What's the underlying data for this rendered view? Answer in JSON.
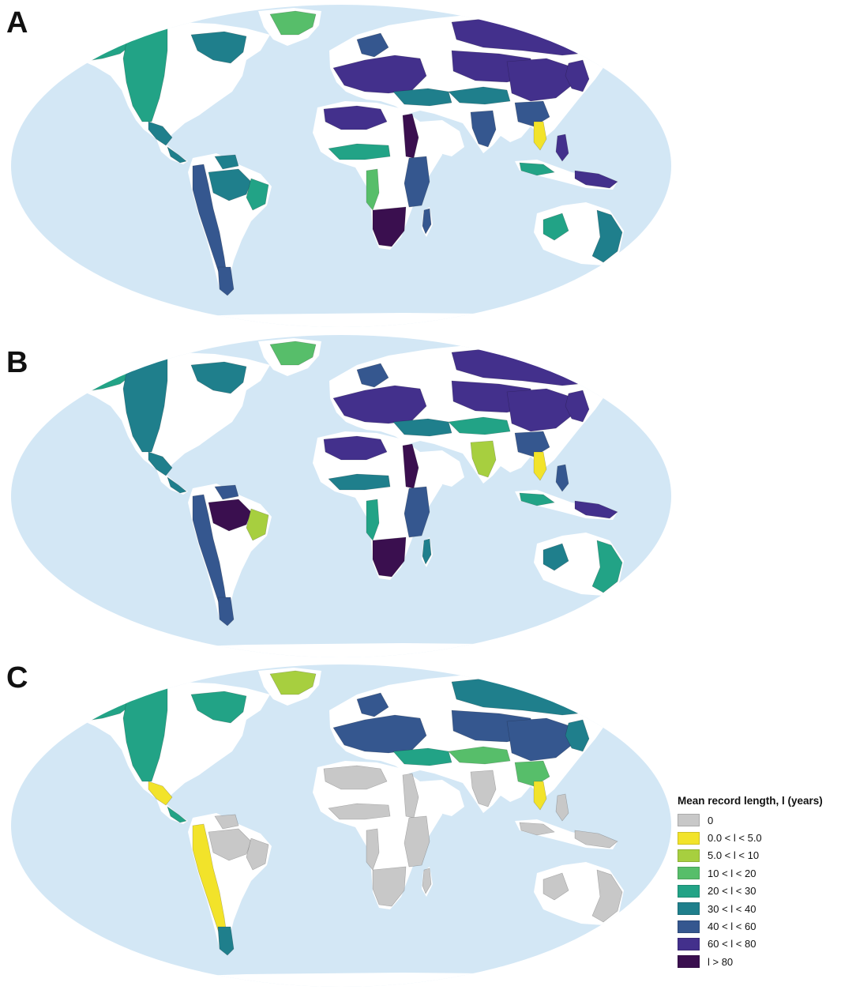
{
  "panels": [
    {
      "label": "A"
    },
    {
      "label": "B"
    },
    {
      "label": "C"
    }
  ],
  "colors": {
    "ocean": "#d3e7f5",
    "land": "#ffffff",
    "nodata": "#c8c8c8",
    "c1": "#f2e32a",
    "c2": "#a7cf3f",
    "c3": "#57be6a",
    "c4": "#22a386",
    "c5": "#1f7f8c",
    "c6": "#35578f",
    "c7": "#43308c",
    "c8": "#3a0f4f"
  },
  "legend": {
    "title": "Mean record length, l (years)",
    "items": [
      {
        "label": "0",
        "color": "#c8c8c8"
      },
      {
        "label": "0.0 < l < 5.0",
        "color": "#f2e32a"
      },
      {
        "label": "5.0 < l < 10",
        "color": "#a7cf3f"
      },
      {
        "label": "10 < l < 20",
        "color": "#57be6a"
      },
      {
        "label": "20 < l < 30",
        "color": "#22a386"
      },
      {
        "label": "30 < l < 40",
        "color": "#1f7f8c"
      },
      {
        "label": "40 < l < 60",
        "color": "#35578f"
      },
      {
        "label": "60 < l < 80",
        "color": "#43308c"
      },
      {
        "label": "l > 80",
        "color": "#3a0f4f"
      }
    ]
  },
  "regions": [
    {
      "name": "alaska-yukon",
      "a": "c4",
      "b": "c4",
      "c": "c4"
    },
    {
      "name": "western-north-america",
      "a": "c4",
      "b": "c5",
      "c": "c4"
    },
    {
      "name": "eastern-canada",
      "a": "c5",
      "b": "c5",
      "c": "c4"
    },
    {
      "name": "greenland",
      "a": "c3",
      "b": "c3",
      "c": "c2"
    },
    {
      "name": "mexico",
      "a": "c5",
      "b": "c5",
      "c": "c1"
    },
    {
      "name": "central-america",
      "a": "c5",
      "b": "c5",
      "c": "c4"
    },
    {
      "name": "andes",
      "a": "c6",
      "b": "c6",
      "c": "c1"
    },
    {
      "name": "patagonia",
      "a": "c6",
      "b": "c6",
      "c": "c5"
    },
    {
      "name": "amazon",
      "a": "c5",
      "b": "c8",
      "c": "nodata"
    },
    {
      "name": "eastern-brazil",
      "a": "c4",
      "b": "c2",
      "c": "nodata"
    },
    {
      "name": "guiana",
      "a": "c5",
      "b": "c6",
      "c": "nodata"
    },
    {
      "name": "europe",
      "a": "c7",
      "b": "c7",
      "c": "c6"
    },
    {
      "name": "scandinavia",
      "a": "c6",
      "b": "c6",
      "c": "c6"
    },
    {
      "name": "turkey-caucasus",
      "a": "c5",
      "b": "c5",
      "c": "c4"
    },
    {
      "name": "north-africa",
      "a": "c7",
      "b": "c7",
      "c": "nodata"
    },
    {
      "name": "sahel",
      "a": "c4",
      "b": "c5",
      "c": "nodata"
    },
    {
      "name": "nile",
      "a": "c8",
      "b": "c8",
      "c": "nodata"
    },
    {
      "name": "east-africa",
      "a": "c6",
      "b": "c6",
      "c": "nodata"
    },
    {
      "name": "southern-africa",
      "a": "c8",
      "b": "c8",
      "c": "nodata"
    },
    {
      "name": "west-africa-coast",
      "a": "c3",
      "b": "c4",
      "c": "nodata"
    },
    {
      "name": "madagascar",
      "a": "c6",
      "b": "c5",
      "c": "nodata"
    },
    {
      "name": "siberia",
      "a": "c7",
      "b": "c7",
      "c": "c5"
    },
    {
      "name": "central-asia",
      "a": "c7",
      "b": "c7",
      "c": "c6"
    },
    {
      "name": "himalaya",
      "a": "c5",
      "b": "c4",
      "c": "c3"
    },
    {
      "name": "china",
      "a": "c7",
      "b": "c7",
      "c": "c6"
    },
    {
      "name": "south-china",
      "a": "c6",
      "b": "c6",
      "c": "c3"
    },
    {
      "name": "japan-korea",
      "a": "c7",
      "b": "c7",
      "c": "c5"
    },
    {
      "name": "india",
      "a": "c6",
      "b": "c2",
      "c": "nodata"
    },
    {
      "name": "indochina",
      "a": "c1",
      "b": "c1",
      "c": "c1"
    },
    {
      "name": "philippines",
      "a": "c7",
      "b": "c6",
      "c": "nodata"
    },
    {
      "name": "indonesia",
      "a": "c4",
      "b": "c4",
      "c": "nodata"
    },
    {
      "name": "new-guinea",
      "a": "c7",
      "b": "c7",
      "c": "nodata"
    },
    {
      "name": "eastern-australia",
      "a": "c5",
      "b": "c4",
      "c": "nodata"
    },
    {
      "name": "western-australia",
      "a": "c4",
      "b": "c5",
      "c": "nodata"
    },
    {
      "name": "new-zealand",
      "a": "c4",
      "b": "c4",
      "c": "nodata"
    }
  ]
}
